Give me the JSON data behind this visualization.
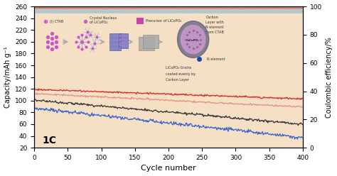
{
  "x_max": 400,
  "x_ticks": [
    0,
    50,
    100,
    150,
    200,
    250,
    300,
    350,
    400
  ],
  "y_left_min": 20,
  "y_left_max": 260,
  "y_left_ticks": [
    20,
    40,
    60,
    80,
    100,
    120,
    140,
    160,
    180,
    200,
    220,
    240,
    260
  ],
  "y_right_min": 0,
  "y_right_max": 100,
  "y_right_ticks": [
    0,
    20,
    40,
    60,
    80,
    100
  ],
  "xlabel": "Cycle number",
  "ylabel_left": "Capacity/mAh g⁻¹",
  "ylabel_right": "Coulombic efficiency/%",
  "annotation": "1C",
  "background_color": "#f5dfc5",
  "line_red_start": 119,
  "line_red_end": 103,
  "line_pink_start": 112,
  "line_pink_end": 89,
  "line_black_start": 101,
  "line_black_end": 60,
  "line_blue_start": 87,
  "line_blue_end": 37,
  "top_band1_y": 255,
  "top_band1_color": "#c8463a",
  "top_band2_y": 250,
  "top_band2_color": "#8ab4d0",
  "ce_y": 256,
  "ce_color": "#dddddd"
}
